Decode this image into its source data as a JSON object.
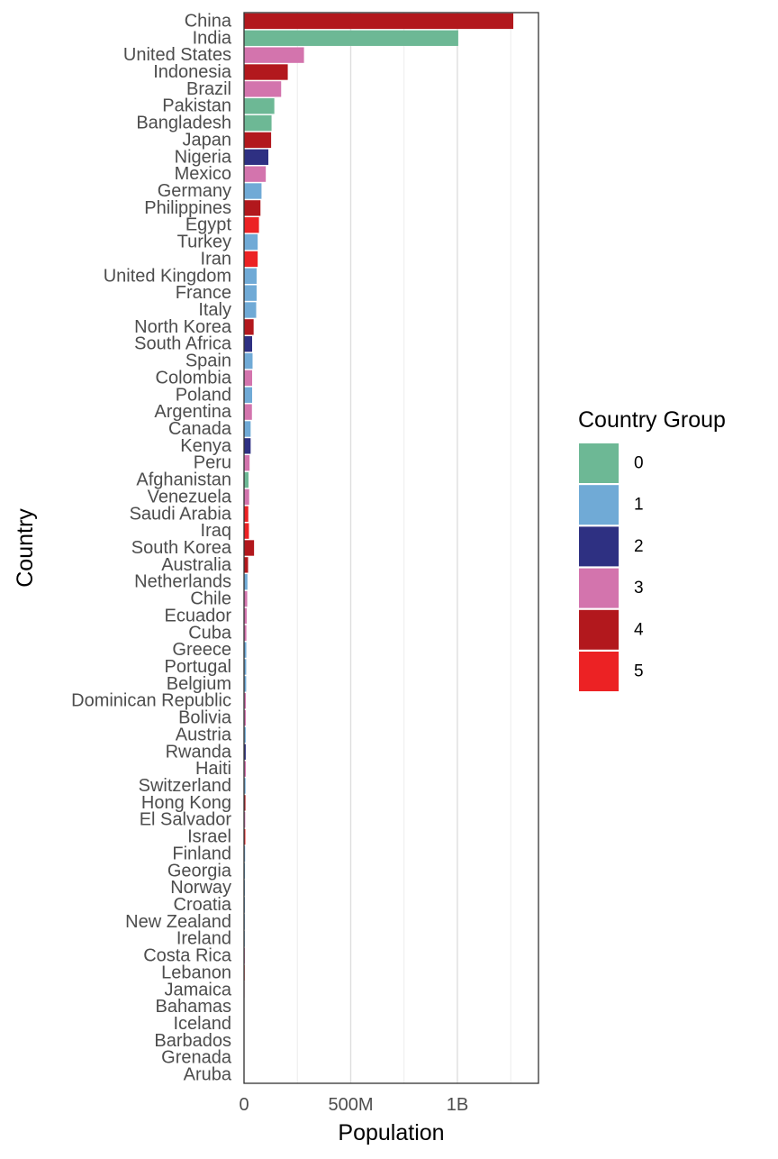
{
  "chart_data": {
    "type": "bar",
    "orientation": "horizontal",
    "xlabel": "Population",
    "ylabel": "Country",
    "x_ticks": [
      {
        "value": 0,
        "label": "0"
      },
      {
        "value": 500000000,
        "label": "500M"
      },
      {
        "value": 1000000000,
        "label": "1B"
      }
    ],
    "xlim": [
      0,
      1380000000
    ],
    "grid": "vertical major and minor gridlines",
    "legend": {
      "title": "Country Group",
      "placement": "right",
      "entries": [
        {
          "label": "0",
          "color": "#6db895"
        },
        {
          "label": "1",
          "color": "#70aad6"
        },
        {
          "label": "2",
          "color": "#2e3082"
        },
        {
          "label": "3",
          "color": "#d374ad"
        },
        {
          "label": "4",
          "color": "#b2181d"
        },
        {
          "label": "5",
          "color": "#ec2224"
        }
      ]
    },
    "categories": [
      "China",
      "India",
      "United States",
      "Indonesia",
      "Brazil",
      "Pakistan",
      "Bangladesh",
      "Japan",
      "Nigeria",
      "Mexico",
      "Germany",
      "Philippines",
      "Egypt",
      "Turkey",
      "Iran",
      "United Kingdom",
      "France",
      "Italy",
      "North Korea",
      "South Africa",
      "Spain",
      "Colombia",
      "Poland",
      "Argentina",
      "Canada",
      "Kenya",
      "Peru",
      "Afghanistan",
      "Venezuela",
      "Saudi Arabia",
      "Iraq",
      "South Korea",
      "Australia",
      "Netherlands",
      "Chile",
      "Ecuador",
      "Cuba",
      "Greece",
      "Portugal",
      "Belgium",
      "Dominican Republic",
      "Bolivia",
      "Austria",
      "Rwanda",
      "Haiti",
      "Switzerland",
      "Hong Kong",
      "El Salvador",
      "Israel",
      "Finland",
      "Georgia",
      "Norway",
      "Croatia",
      "New Zealand",
      "Ireland",
      "Costa Rica",
      "Lebanon",
      "Jamaica",
      "Bahamas",
      "Iceland",
      "Barbados",
      "Grenada",
      "Aruba"
    ],
    "values": [
      1262000000,
      1004000000,
      281000000,
      205000000,
      174000000,
      142000000,
      129000000,
      127000000,
      114000000,
      102000000,
      82000000,
      77000000,
      70000000,
      64000000,
      64000000,
      59000000,
      59000000,
      57000000,
      45000000,
      38000000,
      40000000,
      38000000,
      38000000,
      37000000,
      31000000,
      31000000,
      26000000,
      21000000,
      24000000,
      20000000,
      23000000,
      47000000,
      19000000,
      16000000,
      15000000,
      12500000,
      11100000,
      10800000,
      10300000,
      10200000,
      8500000,
      8300000,
      8000000,
      8000000,
      8500000,
      7200000,
      6700000,
      5900000,
      6300000,
      5200000,
      4700000,
      4500000,
      4400000,
      3900000,
      3800000,
      3900000,
      3200000,
      2600000,
      300000,
      280000,
      270000,
      100000,
      90000
    ],
    "groups": [
      "4",
      "0",
      "3",
      "4",
      "3",
      "0",
      "0",
      "4",
      "2",
      "3",
      "1",
      "4",
      "5",
      "1",
      "5",
      "1",
      "1",
      "1",
      "4",
      "2",
      "1",
      "3",
      "1",
      "3",
      "1",
      "2",
      "3",
      "0",
      "3",
      "5",
      "5",
      "4",
      "4",
      "1",
      "3",
      "3",
      "3",
      "1",
      "1",
      "1",
      "3",
      "3",
      "1",
      "2",
      "3",
      "1",
      "4",
      "3",
      "5",
      "1",
      "1",
      "1",
      "1",
      "1",
      "1",
      "3",
      "5",
      "3",
      "3",
      "1",
      "3",
      "3",
      "3"
    ]
  }
}
